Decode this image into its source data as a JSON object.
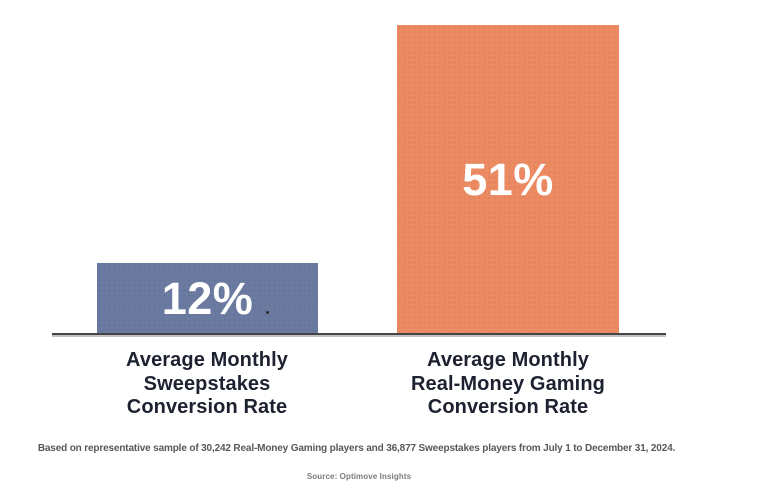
{
  "chart_data": {
    "type": "bar",
    "title": "",
    "categories": [
      "Average Monthly Sweepstakes Conversion Rate",
      "Average Monthly Real-Money Gaming Conversion Rate"
    ],
    "values": [
      12,
      51
    ],
    "value_labels": [
      "12%",
      "51%"
    ],
    "bar_colors": [
      "#6B7AA1",
      "#EC8A62"
    ],
    "value_label_color": "#FFFFFF",
    "category_label_color": "#1D2130",
    "axis_line_color": "#454548",
    "xlabel": "",
    "ylabel": "",
    "ylim": [
      0,
      55
    ],
    "grid": false,
    "legend": false,
    "footnote": "Based on representative sample of 30,242 Real-Money Gaming players and 36,877 Sweepstakes players from July 1 to December 31, 2024.",
    "source": "Source: Optimove Insights"
  },
  "bars": [
    {
      "value_label": "12%",
      "color": "#6B7AA1",
      "label_lines": [
        "Average Monthly",
        "Sweepstakes",
        "Conversion Rate"
      ]
    },
    {
      "value_label": "51%",
      "color": "#EC8A62",
      "label_lines": [
        "Average Monthly",
        "Real-Money Gaming",
        "Conversion Rate"
      ]
    }
  ],
  "footnote": "Based on representative sample of 30,242 Real-Money Gaming players and 36,877 Sweepstakes players from July 1 to December 31, 2024.",
  "source": "Source: Optimove Insights"
}
